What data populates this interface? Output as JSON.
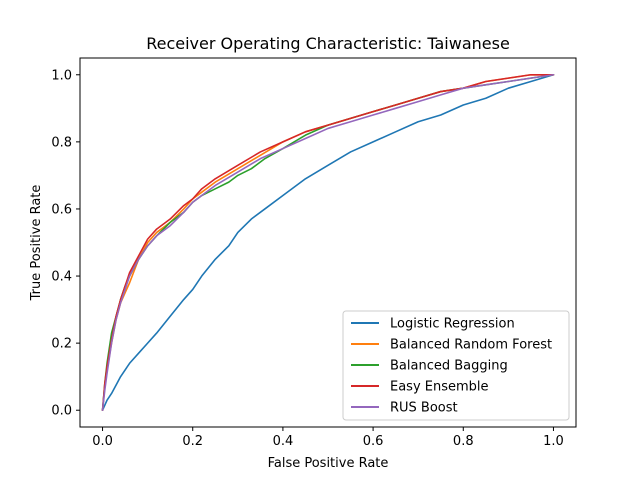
{
  "chart_data": {
    "type": "line",
    "title": "Receiver Operating Characteristic: Taiwanese",
    "xlabel": "False Positive Rate",
    "ylabel": "True Positive Rate",
    "xlim": [
      -0.05,
      1.05
    ],
    "ylim": [
      -0.05,
      1.05
    ],
    "xticks": [
      0.0,
      0.2,
      0.4,
      0.6,
      0.8,
      1.0
    ],
    "yticks": [
      0.0,
      0.2,
      0.4,
      0.6,
      0.8,
      1.0
    ],
    "xtick_labels": [
      "0.0",
      "0.2",
      "0.4",
      "0.6",
      "0.8",
      "1.0"
    ],
    "ytick_labels": [
      "0.0",
      "0.2",
      "0.4",
      "0.6",
      "0.8",
      "1.0"
    ],
    "grid": false,
    "legend_position": "lower-right",
    "series": [
      {
        "name": "Logistic Regression",
        "color": "#1f77b4",
        "x": [
          0.0,
          0.01,
          0.02,
          0.04,
          0.06,
          0.08,
          0.1,
          0.12,
          0.15,
          0.18,
          0.2,
          0.22,
          0.25,
          0.28,
          0.3,
          0.33,
          0.36,
          0.4,
          0.45,
          0.5,
          0.55,
          0.6,
          0.65,
          0.7,
          0.75,
          0.8,
          0.85,
          0.9,
          0.95,
          1.0
        ],
        "y": [
          0.0,
          0.03,
          0.05,
          0.1,
          0.14,
          0.17,
          0.2,
          0.23,
          0.28,
          0.33,
          0.36,
          0.4,
          0.45,
          0.49,
          0.53,
          0.57,
          0.6,
          0.64,
          0.69,
          0.73,
          0.77,
          0.8,
          0.83,
          0.86,
          0.88,
          0.91,
          0.93,
          0.96,
          0.98,
          1.0
        ]
      },
      {
        "name": "Balanced Random Forest",
        "color": "#ff7f0e",
        "x": [
          0.0,
          0.005,
          0.01,
          0.02,
          0.03,
          0.04,
          0.05,
          0.06,
          0.08,
          0.1,
          0.12,
          0.15,
          0.18,
          0.2,
          0.22,
          0.25,
          0.3,
          0.35,
          0.4,
          0.45,
          0.5,
          0.55,
          0.6,
          0.65,
          0.7,
          0.75,
          0.8,
          0.85,
          0.9,
          0.95,
          1.0
        ],
        "y": [
          0.0,
          0.07,
          0.12,
          0.2,
          0.27,
          0.32,
          0.35,
          0.38,
          0.45,
          0.5,
          0.53,
          0.56,
          0.6,
          0.63,
          0.65,
          0.68,
          0.72,
          0.76,
          0.8,
          0.83,
          0.85,
          0.87,
          0.89,
          0.91,
          0.93,
          0.95,
          0.96,
          0.98,
          0.99,
          1.0,
          1.0
        ]
      },
      {
        "name": "Balanced Bagging",
        "color": "#2ca02c",
        "x": [
          0.0,
          0.005,
          0.01,
          0.02,
          0.03,
          0.04,
          0.05,
          0.06,
          0.08,
          0.1,
          0.12,
          0.15,
          0.18,
          0.2,
          0.22,
          0.25,
          0.28,
          0.3,
          0.33,
          0.36,
          0.4,
          0.45,
          0.5,
          0.55,
          0.6,
          0.65,
          0.7,
          0.75,
          0.8,
          0.85,
          0.9,
          0.95,
          1.0
        ],
        "y": [
          0.0,
          0.08,
          0.14,
          0.23,
          0.28,
          0.33,
          0.37,
          0.4,
          0.45,
          0.49,
          0.52,
          0.56,
          0.59,
          0.62,
          0.64,
          0.66,
          0.68,
          0.7,
          0.72,
          0.75,
          0.78,
          0.82,
          0.85,
          0.87,
          0.89,
          0.91,
          0.93,
          0.95,
          0.96,
          0.97,
          0.98,
          0.99,
          1.0
        ]
      },
      {
        "name": "Easy Ensemble",
        "color": "#d62728",
        "x": [
          0.0,
          0.005,
          0.01,
          0.02,
          0.03,
          0.04,
          0.05,
          0.06,
          0.08,
          0.1,
          0.12,
          0.15,
          0.18,
          0.2,
          0.22,
          0.25,
          0.3,
          0.35,
          0.4,
          0.45,
          0.5,
          0.55,
          0.6,
          0.65,
          0.7,
          0.75,
          0.8,
          0.85,
          0.9,
          0.95,
          1.0
        ],
        "y": [
          0.0,
          0.08,
          0.13,
          0.21,
          0.28,
          0.33,
          0.37,
          0.41,
          0.46,
          0.51,
          0.54,
          0.57,
          0.61,
          0.63,
          0.66,
          0.69,
          0.73,
          0.77,
          0.8,
          0.83,
          0.85,
          0.87,
          0.89,
          0.91,
          0.93,
          0.95,
          0.96,
          0.98,
          0.99,
          1.0,
          1.0
        ]
      },
      {
        "name": "RUS Boost",
        "color": "#9467bd",
        "x": [
          0.0,
          0.005,
          0.01,
          0.02,
          0.03,
          0.04,
          0.05,
          0.06,
          0.08,
          0.1,
          0.12,
          0.15,
          0.18,
          0.2,
          0.22,
          0.25,
          0.3,
          0.35,
          0.4,
          0.45,
          0.5,
          0.55,
          0.6,
          0.65,
          0.7,
          0.75,
          0.8,
          0.85,
          0.9,
          0.95,
          1.0
        ],
        "y": [
          0.0,
          0.06,
          0.11,
          0.2,
          0.27,
          0.32,
          0.36,
          0.4,
          0.45,
          0.49,
          0.52,
          0.55,
          0.59,
          0.62,
          0.64,
          0.67,
          0.71,
          0.75,
          0.78,
          0.81,
          0.84,
          0.86,
          0.88,
          0.9,
          0.92,
          0.94,
          0.96,
          0.97,
          0.98,
          0.99,
          1.0
        ]
      }
    ]
  }
}
